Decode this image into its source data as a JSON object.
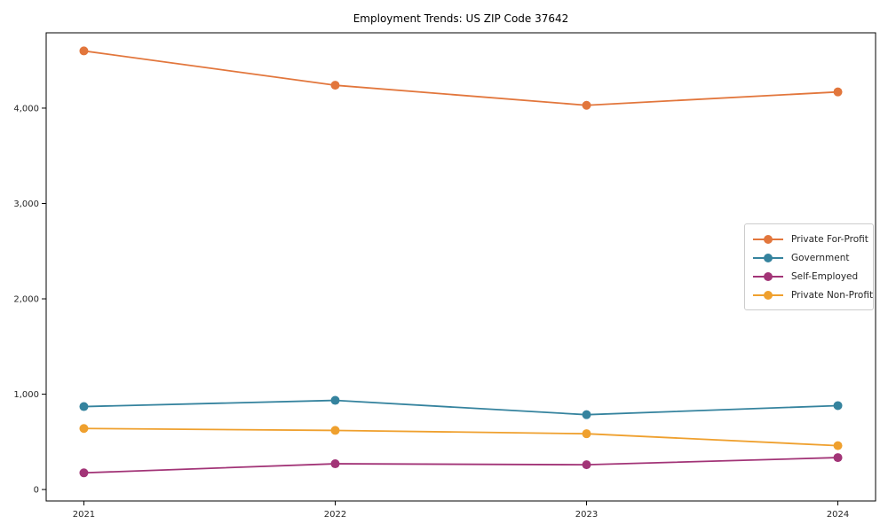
{
  "chart_data": {
    "type": "line",
    "title": "Employment Trends: US ZIP Code 37642",
    "xlabel": "",
    "ylabel": "",
    "x": [
      2021,
      2022,
      2023,
      2024
    ],
    "series": [
      {
        "name": "Private For-Profit",
        "color": "#e2763c",
        "values": [
          4600,
          4240,
          4030,
          4170
        ]
      },
      {
        "name": "Government",
        "color": "#35839e",
        "values": [
          870,
          935,
          785,
          880
        ]
      },
      {
        "name": "Self-Employed",
        "color": "#a23477",
        "values": [
          175,
          270,
          260,
          335
        ]
      },
      {
        "name": "Private Non-Profit",
        "color": "#efa02e",
        "values": [
          640,
          620,
          585,
          460
        ]
      }
    ],
    "xticks": {
      "values": [
        2021,
        2022,
        2023,
        2024
      ],
      "labels": [
        "2021",
        "2022",
        "2023",
        "2024"
      ]
    },
    "yticks": {
      "values": [
        0,
        1000,
        2000,
        3000,
        4000
      ],
      "labels": [
        "0",
        "1,000",
        "2,000",
        "3,000",
        "4,000"
      ]
    },
    "xlim": [
      2020.85,
      2024.15
    ],
    "ylim": [
      -120,
      4790
    ],
    "grid": false,
    "legend_position": "center right",
    "marker": "circle"
  }
}
